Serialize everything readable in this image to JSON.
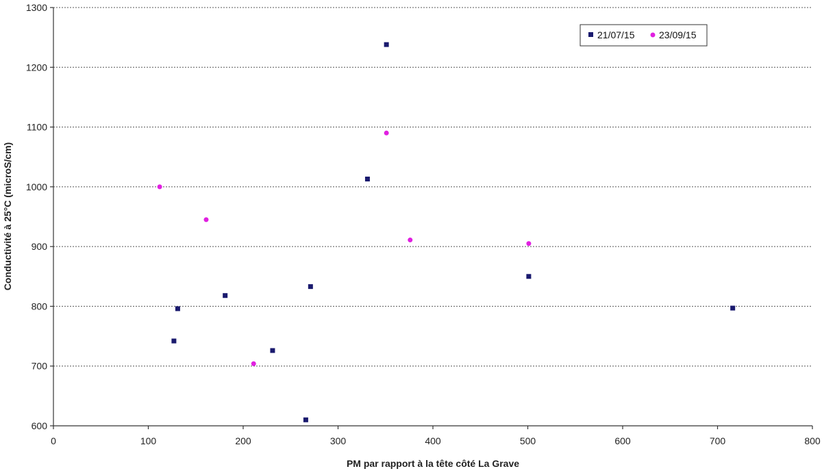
{
  "chart_data": {
    "type": "scatter",
    "title": "",
    "xlabel": "PM par rapport à la tête côté La Grave",
    "ylabel": "Conductivité à 25°C (microS/cm)",
    "xlim": [
      0,
      800
    ],
    "ylim": [
      600,
      1300
    ],
    "x_ticks": [
      "0",
      "100",
      "200",
      "300",
      "400",
      "500",
      "600",
      "700",
      "800"
    ],
    "y_ticks": [
      "600",
      "700",
      "800",
      "900",
      "1000",
      "1100",
      "1200",
      "1300"
    ],
    "grid": "horizontal dashed",
    "legend_position": "top-right",
    "series": [
      {
        "name": "21/07/15",
        "marker": "square",
        "color": "#1a1a6e",
        "points": [
          {
            "x": 127,
            "y": 742
          },
          {
            "x": 131,
            "y": 796
          },
          {
            "x": 181,
            "y": 818
          },
          {
            "x": 231,
            "y": 726
          },
          {
            "x": 266,
            "y": 610
          },
          {
            "x": 271,
            "y": 833
          },
          {
            "x": 331,
            "y": 1013
          },
          {
            "x": 351,
            "y": 1238
          },
          {
            "x": 501,
            "y": 850
          },
          {
            "x": 716,
            "y": 797
          }
        ]
      },
      {
        "name": "23/09/15",
        "marker": "circle",
        "color": "#e020e0",
        "points": [
          {
            "x": 112,
            "y": 1000
          },
          {
            "x": 161,
            "y": 945
          },
          {
            "x": 211,
            "y": 704
          },
          {
            "x": 351,
            "y": 1090
          },
          {
            "x": 376,
            "y": 911
          },
          {
            "x": 501,
            "y": 905
          }
        ]
      }
    ]
  }
}
